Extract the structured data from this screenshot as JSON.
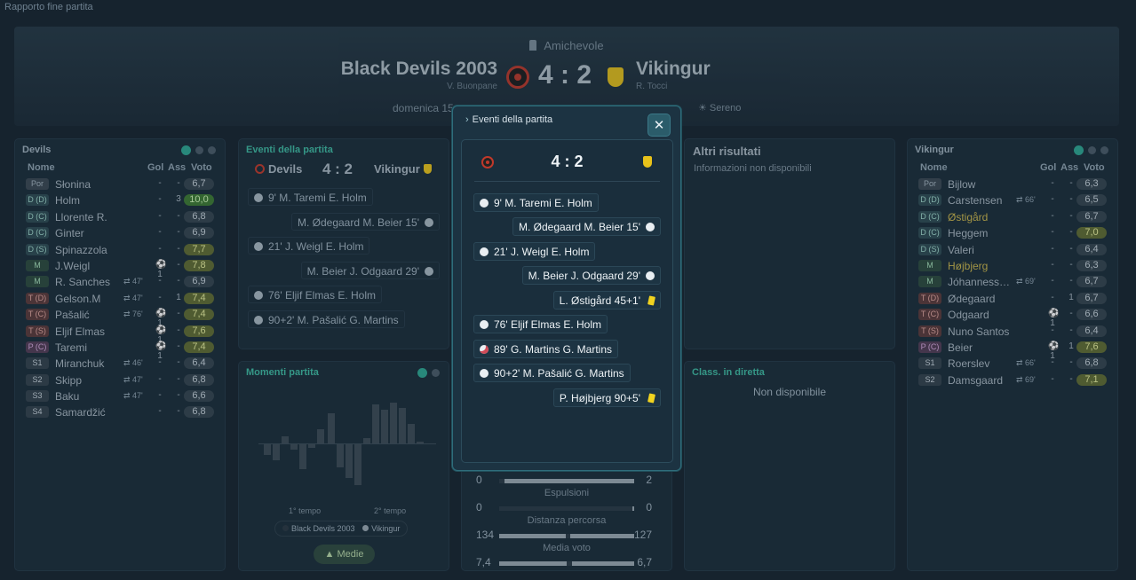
{
  "page_label": "Rapporto fine partita",
  "header": {
    "competition": "Amichevole",
    "home_team": "Black Devils 2003",
    "home_coach": "V. Buonpane",
    "away_team": "Vikingur",
    "away_coach": "R. Tocci",
    "score": "4 : 2",
    "date_text": "domenica 15",
    "weather": "☀ Sereno"
  },
  "home_panel": {
    "title": "Devils",
    "headers": {
      "name": "Nome",
      "goals": "Gol",
      "assists": "Ass",
      "rating": "Voto"
    },
    "players": [
      {
        "pos": "Por",
        "name": "Słonina",
        "sub": "",
        "g": "-",
        "a": "-",
        "rating": "6,7"
      },
      {
        "pos": "D (D)",
        "name": "Holm",
        "sub": "",
        "g": "-",
        "a": "3",
        "rating": "10,0"
      },
      {
        "pos": "D (C)",
        "name": "Llorente R.",
        "sub": "",
        "g": "-",
        "a": "-",
        "rating": "6,8"
      },
      {
        "pos": "D (C)",
        "name": "Ginter",
        "sub": "",
        "g": "-",
        "a": "-",
        "rating": "6,9"
      },
      {
        "pos": "D (S)",
        "name": "Spinazzola",
        "sub": "",
        "g": "-",
        "a": "-",
        "rating": "7,7"
      },
      {
        "pos": "M",
        "name": "J.Weigl",
        "sub": "",
        "g": "⚽1",
        "a": "-",
        "rating": "7,8"
      },
      {
        "pos": "M",
        "name": "R. Sanches",
        "sub": "47'",
        "g": "-",
        "a": "-",
        "rating": "6,9"
      },
      {
        "pos": "T (D)",
        "name": "Gelson.M",
        "sub": "47'",
        "g": "-",
        "a": "1",
        "rating": "7,4"
      },
      {
        "pos": "T (C)",
        "name": "Pašalić",
        "sub": "76'",
        "g": "⚽1",
        "a": "-",
        "rating": "7,4"
      },
      {
        "pos": "T (S)",
        "name": "Eljif Elmas",
        "sub": "",
        "g": "⚽1",
        "a": "-",
        "rating": "7,6"
      },
      {
        "pos": "P (C)",
        "name": "Taremi",
        "sub": "",
        "g": "⚽1",
        "a": "-",
        "rating": "7,4"
      },
      {
        "pos": "S1",
        "name": "Miranchuk",
        "sub": "46'",
        "g": "-",
        "a": "-",
        "rating": "6,4"
      },
      {
        "pos": "S2",
        "name": "Skipp",
        "sub": "47'",
        "g": "-",
        "a": "-",
        "rating": "6,8"
      },
      {
        "pos": "S3",
        "name": "Baku",
        "sub": "47'",
        "g": "-",
        "a": "-",
        "rating": "6,6"
      },
      {
        "pos": "S4",
        "name": "Samardžić",
        "sub": "",
        "g": "-",
        "a": "-",
        "rating": "6,8"
      }
    ]
  },
  "away_panel": {
    "title": "Vikingur",
    "headers": {
      "name": "Nome",
      "goals": "Gol",
      "assists": "Ass",
      "rating": "Voto"
    },
    "players": [
      {
        "pos": "Por",
        "name": "Bijlow",
        "sub": "",
        "g": "-",
        "a": "-",
        "rating": "6,3"
      },
      {
        "pos": "D (D)",
        "name": "Carstensen",
        "sub": "66'",
        "g": "-",
        "a": "-",
        "rating": "6,5"
      },
      {
        "pos": "D (C)",
        "name": "Østigård",
        "sub": "",
        "g": "-",
        "a": "-",
        "rating": "6,7"
      },
      {
        "pos": "D (C)",
        "name": "Heggem",
        "sub": "",
        "g": "-",
        "a": "-",
        "rating": "7,0"
      },
      {
        "pos": "D (S)",
        "name": "Valeri",
        "sub": "",
        "g": "-",
        "a": "-",
        "rating": "6,4"
      },
      {
        "pos": "M",
        "name": "Højbjerg",
        "sub": "",
        "g": "-",
        "a": "-",
        "rating": "6,3"
      },
      {
        "pos": "M",
        "name": "Jóhanness…",
        "sub": "69'",
        "g": "-",
        "a": "-",
        "rating": "6,7"
      },
      {
        "pos": "T (D)",
        "name": "Ødegaard",
        "sub": "",
        "g": "-",
        "a": "1",
        "rating": "6,7"
      },
      {
        "pos": "T (C)",
        "name": "Odgaard",
        "sub": "",
        "g": "⚽1",
        "a": "-",
        "rating": "6,6"
      },
      {
        "pos": "T (S)",
        "name": "Nuno Santos",
        "sub": "",
        "g": "-",
        "a": "-",
        "rating": "6,4"
      },
      {
        "pos": "P (C)",
        "name": "Beier",
        "sub": "",
        "g": "⚽1",
        "a": "1",
        "rating": "7,6"
      },
      {
        "pos": "S1",
        "name": "Roerslev",
        "sub": "66'",
        "g": "-",
        "a": "-",
        "rating": "6,8"
      },
      {
        "pos": "S2",
        "name": "Damsgaard",
        "sub": "69'",
        "g": "-",
        "a": "-",
        "rating": "7,1"
      }
    ]
  },
  "events_panel": {
    "title": "Eventi della partita",
    "home": "Devils",
    "score": "4 : 2",
    "away": "Vikingur",
    "items": [
      {
        "side": "home",
        "text": "9' M. Taremi E. Holm"
      },
      {
        "side": "away",
        "text": "M. Ødegaard M. Beier 15'"
      },
      {
        "side": "home",
        "text": "21' J. Weigl E. Holm"
      },
      {
        "side": "away",
        "text": "M. Beier J. Odgaard 29'"
      },
      {
        "side": "home",
        "text": "76' Eljif Elmas E. Holm"
      },
      {
        "side": "home",
        "text": "90+2' M. Pašalić G. Martins"
      }
    ]
  },
  "momentum_panel": {
    "title": "Momenti partita",
    "half1": "1° tempo",
    "half2": "2° tempo",
    "legend_home": "Black Devils 2003",
    "legend_away": "Vikingur",
    "button": "Medie"
  },
  "other_results": {
    "title": "Altri risultati",
    "text": "Informazioni non disponibili"
  },
  "live_table": {
    "title": "Class. in diretta",
    "text": "Non disponibile"
  },
  "stats": [
    {
      "label": "",
      "home": "0",
      "away": "2",
      "home_frac": 0.0,
      "away_frac": 1.0
    },
    {
      "label": "Espulsioni",
      "home": "0",
      "away": "0",
      "home_frac": 0.0,
      "away_frac": 0.0
    },
    {
      "label": "Distanza percorsa",
      "home": "134",
      "away": "127",
      "home_frac": 0.51,
      "away_frac": 0.49
    },
    {
      "label": "Media voto",
      "home": "7,4",
      "away": "6,7",
      "home_frac": 0.52,
      "away_frac": 0.48
    }
  ],
  "modal": {
    "title": "Eventi della partita",
    "score": "4 : 2",
    "close": "✕",
    "events": [
      {
        "side": "home",
        "type": "goal",
        "text": "9' M. Taremi E. Holm"
      },
      {
        "side": "away",
        "type": "goal",
        "text": "M. Ødegaard M. Beier 15'"
      },
      {
        "side": "home",
        "type": "goal",
        "text": "21' J. Weigl E. Holm"
      },
      {
        "side": "away",
        "type": "goal",
        "text": "M. Beier J. Odgaard 29'"
      },
      {
        "side": "away",
        "type": "yellow",
        "text": "L. Østigård 45+1'"
      },
      {
        "side": "home",
        "type": "goal",
        "text": "76' Eljif Elmas E. Holm"
      },
      {
        "side": "home",
        "type": "own",
        "text": "89' G. Martins G. Martins"
      },
      {
        "side": "home",
        "type": "goal",
        "text": "90+2' M. Pašalić G. Martins"
      },
      {
        "side": "away",
        "type": "yellow",
        "text": "P. Højbjerg 90+5'"
      }
    ]
  }
}
